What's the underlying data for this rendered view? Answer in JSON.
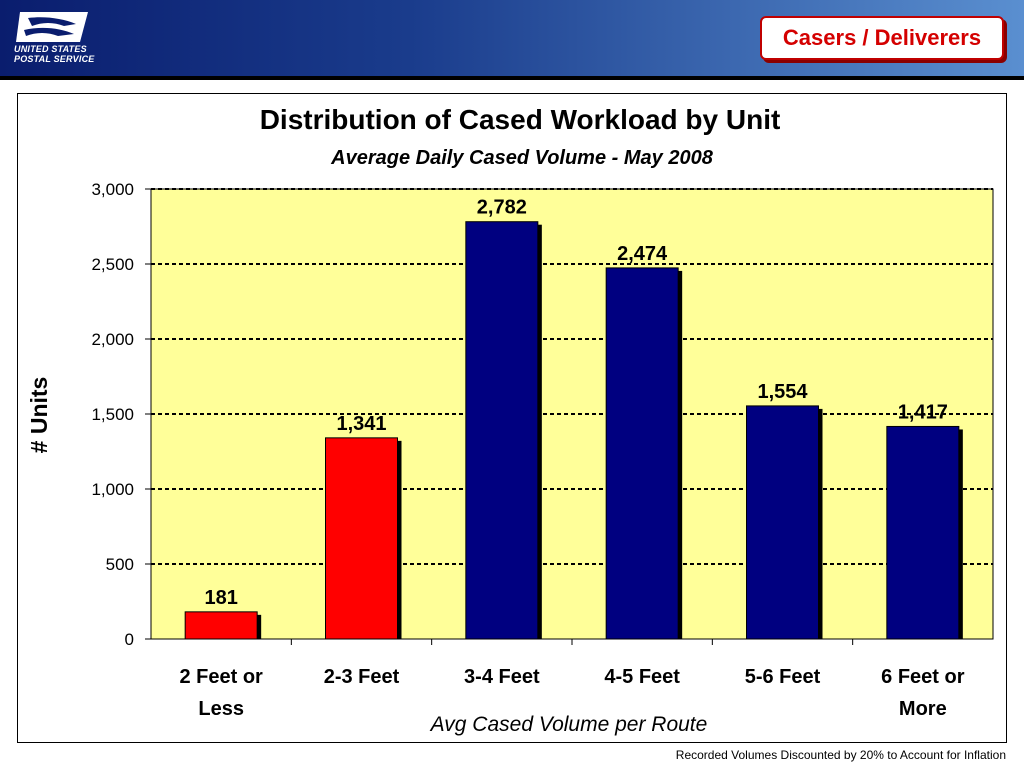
{
  "header": {
    "logo_text_line1": "UNITED STATES",
    "logo_text_line2": "POSTAL SERVICE",
    "badge": "Casers / Deliverers"
  },
  "footer": "Recorded Volumes Discounted by 20% to Account for Inflation",
  "chart_data": {
    "type": "bar",
    "title": "Distribution of Cased Workload by Unit",
    "subtitle": "Average Daily Cased Volume - May 2008",
    "categories": [
      [
        "2 Feet or",
        "Less"
      ],
      [
        "2-3 Feet"
      ],
      [
        "3-4 Feet"
      ],
      [
        "4-5 Feet"
      ],
      [
        "5-6 Feet"
      ],
      [
        "6 Feet or",
        "More"
      ]
    ],
    "values": [
      181,
      1341,
      2782,
      2474,
      1554,
      1417
    ],
    "value_labels": [
      "181",
      "1,341",
      "2,782",
      "2,474",
      "1,554",
      "1,417"
    ],
    "bar_colors": [
      "#ff0000",
      "#ff0000",
      "#000080",
      "#000080",
      "#000080",
      "#000080"
    ],
    "xlabel": "Avg Cased Volume per Route",
    "ylabel": "# Units",
    "ylim": [
      0,
      3000
    ],
    "yticks": [
      0,
      500,
      1000,
      1500,
      2000,
      2500,
      3000
    ],
    "ytick_labels": [
      "0",
      "500",
      "1,000",
      "1,500",
      "2,000",
      "2,500",
      "3,000"
    ],
    "plot_background": "#ffff99",
    "grid": true
  }
}
